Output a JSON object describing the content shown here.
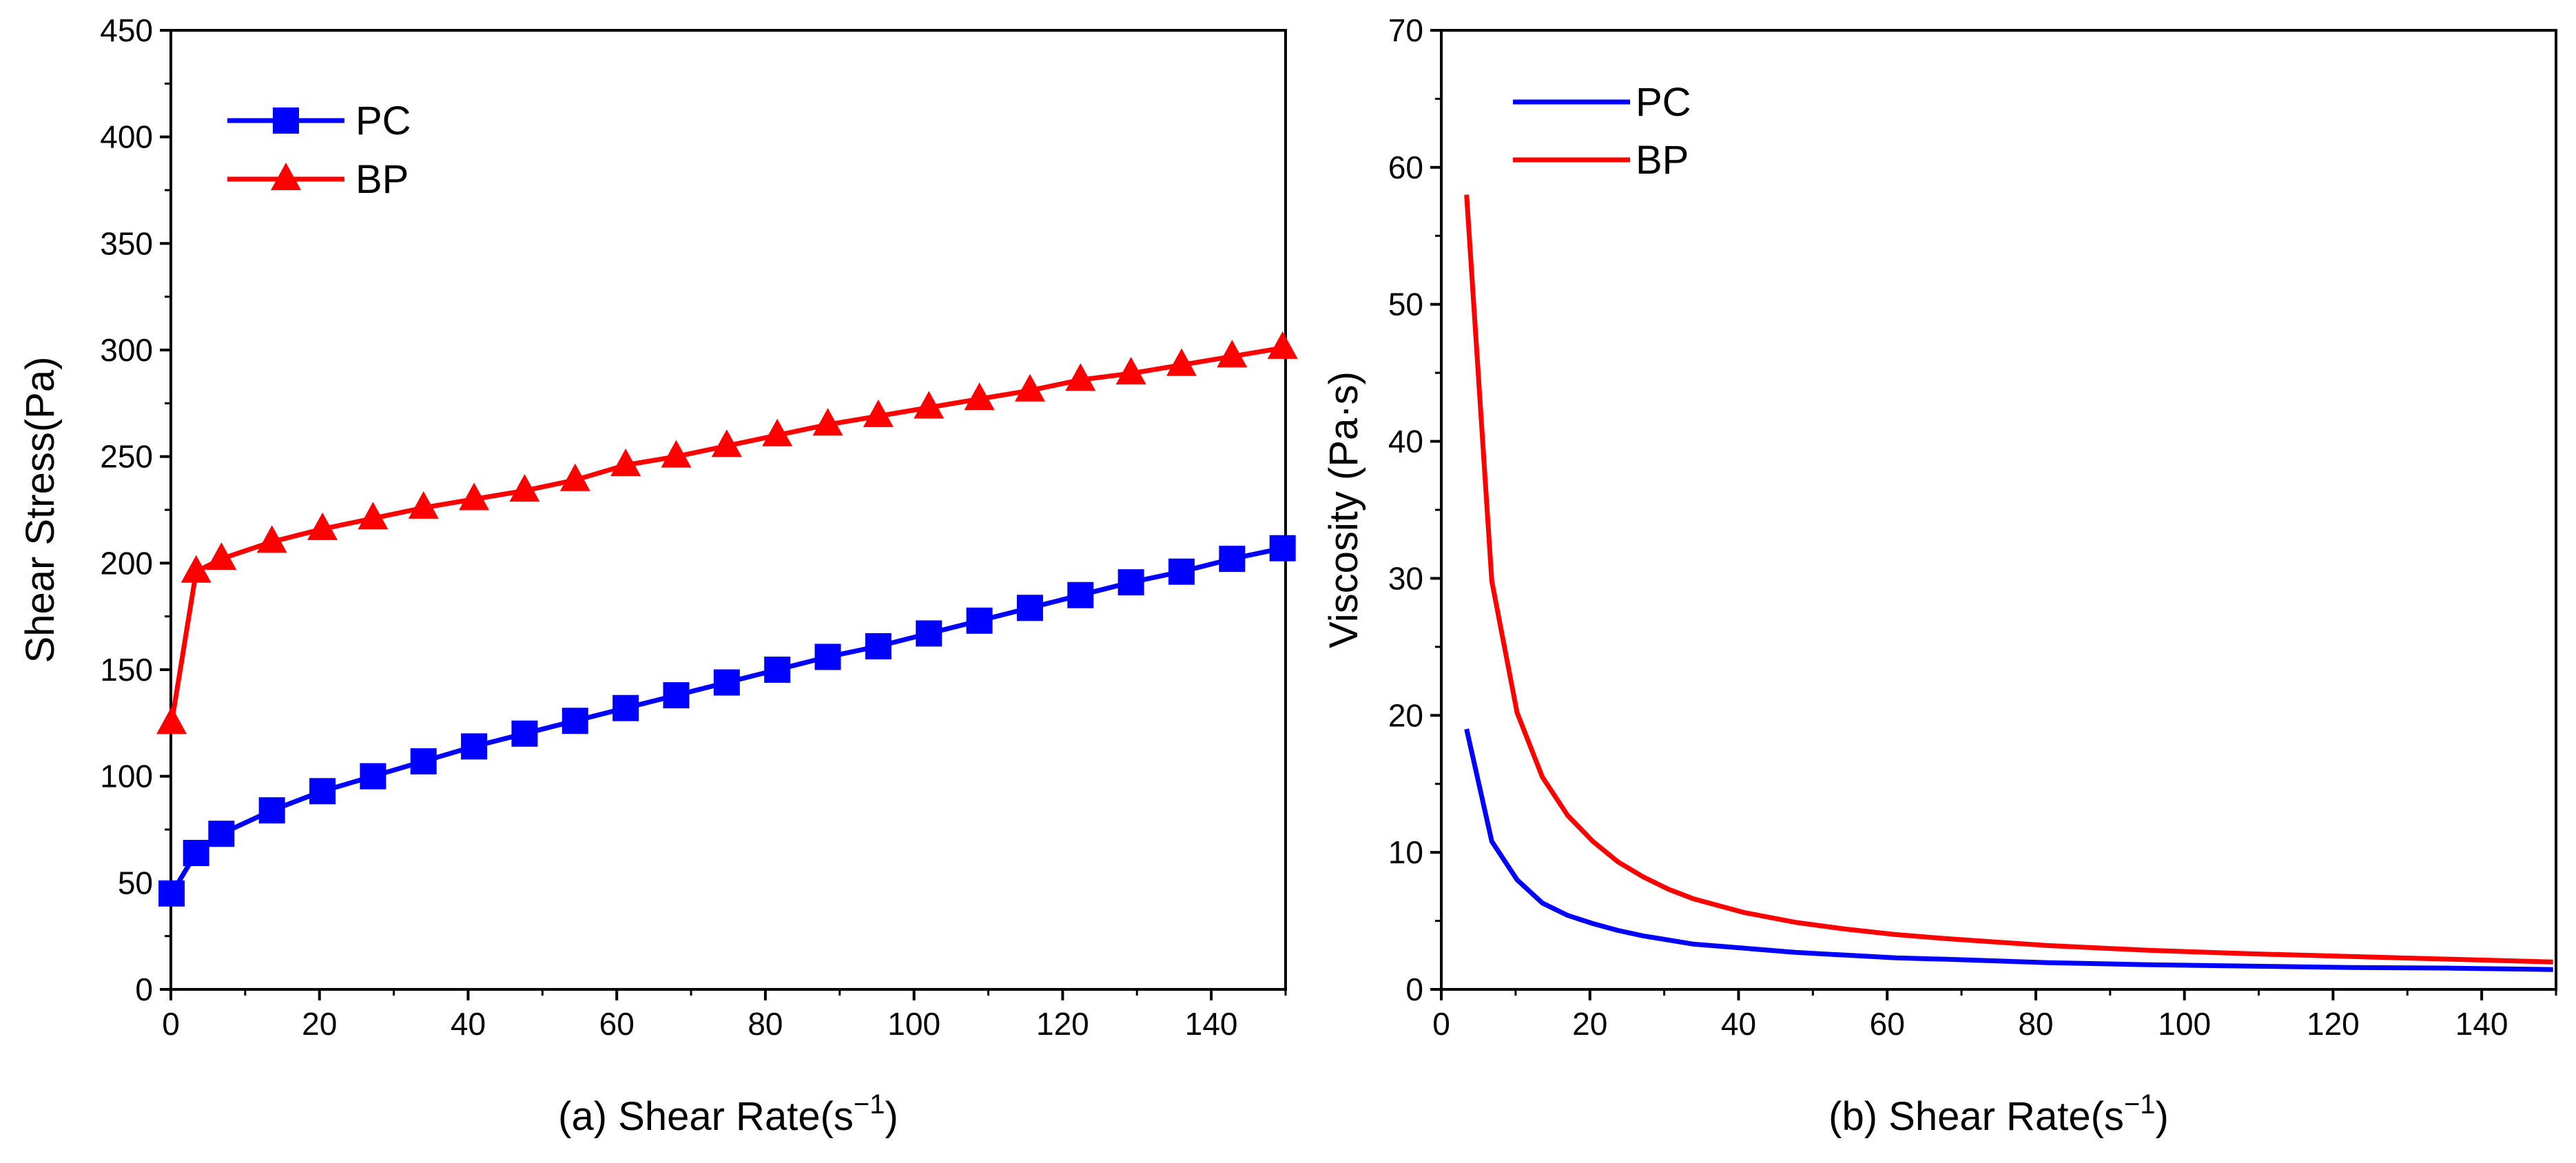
{
  "chart_data": [
    {
      "id": "a",
      "type": "line",
      "markers": true,
      "title": "",
      "xlabel": "(a) Shear Rate(s",
      "xlabel_sup": "−1",
      "xlabel_tail": ")",
      "ylabel": "Shear Stress(Pa)",
      "xlim": [
        0,
        150
      ],
      "ylim": [
        0,
        450
      ],
      "xticks": [
        0,
        20,
        40,
        60,
        80,
        100,
        120,
        140
      ],
      "yticks": [
        0,
        50,
        100,
        150,
        200,
        250,
        300,
        350,
        400,
        450
      ],
      "legend_position": "top-left",
      "series": [
        {
          "name": "PC",
          "color": "#0000ff",
          "marker": "square",
          "x": [
            0.1,
            3.4,
            6.8,
            13.6,
            20.4,
            27.2,
            34.0,
            40.8,
            47.6,
            54.4,
            61.2,
            68.0,
            74.8,
            81.6,
            88.4,
            95.2,
            102.0,
            108.8,
            115.6,
            122.4,
            129.2,
            136.0,
            142.8,
            149.6
          ],
          "y": [
            45,
            64,
            73,
            84,
            93,
            100,
            107,
            114,
            120,
            126,
            132,
            138,
            144,
            150,
            156,
            161,
            167,
            173,
            179,
            185,
            191,
            196,
            202,
            207
          ]
        },
        {
          "name": "BP",
          "color": "#ff0000",
          "marker": "triangle",
          "x": [
            0.1,
            3.4,
            6.8,
            13.6,
            20.4,
            27.2,
            34.0,
            40.8,
            47.6,
            54.4,
            61.2,
            68.0,
            74.8,
            81.6,
            88.4,
            95.2,
            102.0,
            108.8,
            115.6,
            122.4,
            129.2,
            136.0,
            142.8,
            149.6
          ],
          "y": [
            125,
            196,
            202,
            210,
            216,
            221,
            226,
            230,
            234,
            239,
            246,
            250,
            255,
            260,
            265,
            269,
            273,
            277,
            281,
            286,
            289,
            293,
            297,
            301
          ]
        }
      ]
    },
    {
      "id": "b",
      "type": "line",
      "markers": false,
      "title": "",
      "xlabel": "(b) Shear Rate(s",
      "xlabel_sup": "−1",
      "xlabel_tail": ")",
      "ylabel": "Viscosity (Pa·s)",
      "xlim": [
        0,
        150
      ],
      "ylim": [
        0,
        70
      ],
      "xticks": [
        0,
        20,
        40,
        60,
        80,
        100,
        120,
        140
      ],
      "yticks": [
        0,
        10,
        20,
        30,
        40,
        50,
        60,
        70
      ],
      "legend_position": "top-left",
      "series": [
        {
          "name": "PC",
          "color": "#0000ff",
          "x": [
            3.4,
            6.8,
            10.2,
            13.6,
            17.0,
            20.4,
            23.8,
            27.2,
            30.6,
            34.0,
            40.8,
            47.6,
            54.4,
            61.2,
            68.0,
            81.6,
            95.2,
            108.8,
            122.4,
            136.0,
            149.6
          ],
          "y": [
            19.0,
            10.8,
            8.0,
            6.3,
            5.4,
            4.8,
            4.3,
            3.9,
            3.6,
            3.3,
            3.0,
            2.7,
            2.5,
            2.3,
            2.2,
            1.95,
            1.8,
            1.7,
            1.6,
            1.55,
            1.45
          ]
        },
        {
          "name": "BP",
          "color": "#ff0000",
          "x": [
            3.4,
            6.8,
            10.2,
            13.6,
            17.0,
            20.4,
            23.8,
            27.2,
            30.6,
            34.0,
            40.8,
            47.6,
            54.4,
            61.2,
            68.0,
            81.6,
            95.2,
            108.8,
            122.4,
            136.0,
            149.6
          ],
          "y": [
            58.0,
            29.8,
            20.2,
            15.5,
            12.7,
            10.8,
            9.3,
            8.2,
            7.3,
            6.6,
            5.6,
            4.9,
            4.4,
            4.0,
            3.7,
            3.2,
            2.85,
            2.6,
            2.4,
            2.2,
            2.0
          ]
        }
      ]
    }
  ]
}
